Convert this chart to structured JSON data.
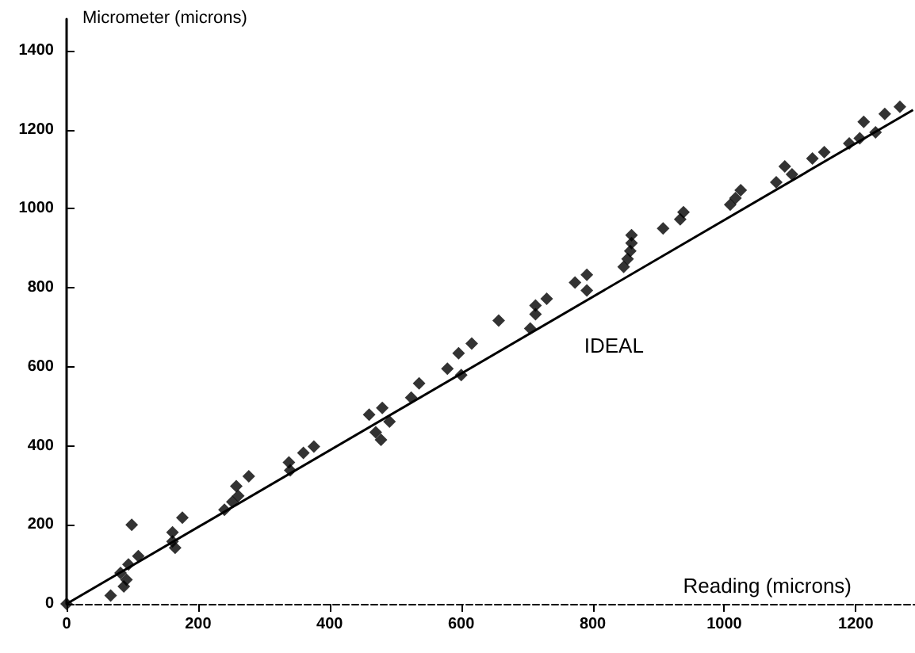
{
  "chart_data": {
    "type": "scatter",
    "xlabel": "Reading (microns)",
    "ylabel": "Micrometer (microns)",
    "xlim": [
      0,
      1290
    ],
    "ylim": [
      0,
      1480
    ],
    "xticks": [
      0,
      200,
      400,
      600,
      800,
      1000,
      1200
    ],
    "yticks": [
      0,
      200,
      400,
      600,
      800,
      1000,
      1200,
      1400
    ],
    "series": [
      {
        "marker": "diamond",
        "color": "#000000",
        "x": [
          0,
          67,
          82,
          87,
          91,
          94,
          99,
          109,
          161,
          161,
          165,
          176,
          240,
          252,
          258,
          261,
          277,
          338,
          340,
          360,
          376,
          460,
          470,
          478,
          491,
          480,
          524,
          536,
          579,
          600,
          596,
          616,
          657,
          705,
          713,
          713,
          730,
          773,
          791,
          791,
          847,
          853,
          857,
          859,
          859,
          907,
          933,
          938,
          1009,
          1017,
          1025,
          1079,
          1092,
          1103,
          1134,
          1152,
          1190,
          1206,
          1212,
          1230,
          1244,
          1267
        ],
        "values": [
          0,
          21,
          78,
          44,
          61,
          100,
          200,
          121,
          181,
          158,
          142,
          218,
          238,
          258,
          298,
          273,
          323,
          358,
          338,
          382,
          398,
          479,
          434,
          415,
          461,
          496,
          522,
          558,
          595,
          579,
          634,
          659,
          717,
          697,
          733,
          755,
          772,
          813,
          833,
          793,
          853,
          873,
          893,
          913,
          933,
          950,
          973,
          991,
          1010,
          1027,
          1047,
          1067,
          1107,
          1087,
          1127,
          1143,
          1165,
          1178,
          1220,
          1193,
          1240,
          1258
        ]
      },
      {
        "type": "line",
        "marker": "none",
        "name": "IDEAL",
        "color": "#000000",
        "x": [
          0,
          1287
        ],
        "values": [
          0,
          1250
        ]
      }
    ]
  }
}
